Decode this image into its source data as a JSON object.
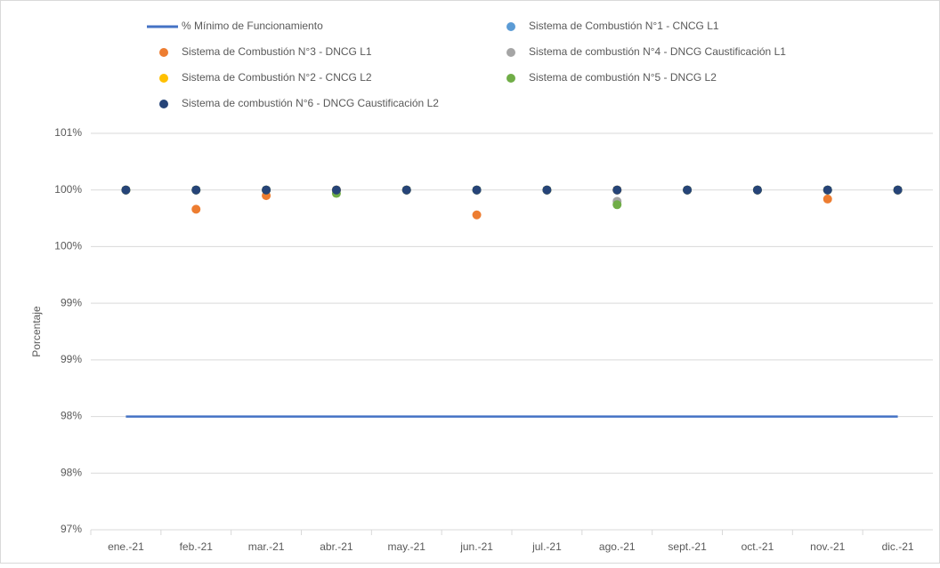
{
  "chart_data": {
    "type": "scatter",
    "y_label": "Porcentaje",
    "categories": [
      "ene.-21",
      "feb.-21",
      "mar.-21",
      "abr.-21",
      "may.-21",
      "jun.-21",
      "jul.-21",
      "ago.-21",
      "sept.-21",
      "oct.-21",
      "nov.-21",
      "dic.-21"
    ],
    "ylim": [
      97,
      100.5
    ],
    "yticks": [
      {
        "value": 97,
        "label": "97%"
      },
      {
        "value": 97.5,
        "label": "98%"
      },
      {
        "value": 98,
        "label": "98%"
      },
      {
        "value": 98.5,
        "label": "99%"
      },
      {
        "value": 99,
        "label": "99%"
      },
      {
        "value": 99.5,
        "label": "100%"
      },
      {
        "value": 100,
        "label": "100%"
      },
      {
        "value": 100.5,
        "label": "101%"
      }
    ],
    "grid": true,
    "legend": "top",
    "series": [
      {
        "name": "% Mínimo de Funcionamiento",
        "type": "line",
        "color": "#4472c4",
        "values": [
          98,
          98,
          98,
          98,
          98,
          98,
          98,
          98,
          98,
          98,
          98,
          98
        ]
      },
      {
        "name": "Sistema de Combustión N°1 - CNCG L1",
        "color": "#5b9bd5",
        "values": [
          100,
          100,
          100,
          100,
          100,
          100,
          100,
          100,
          100,
          100,
          100,
          100
        ]
      },
      {
        "name": "Sistema de Combustión N°3 - DNCG L1",
        "color": "#ed7d31",
        "values": [
          100,
          99.83,
          99.95,
          100,
          100,
          99.78,
          100,
          100,
          100,
          100,
          99.92,
          100
        ]
      },
      {
        "name": "Sistema de combustión N°4 - DNCG Caustificación L1",
        "color": "#a5a5a5",
        "values": [
          100,
          100,
          100,
          100,
          100,
          100,
          100,
          99.9,
          100,
          100,
          100,
          100
        ]
      },
      {
        "name": "Sistema de Combustión N°2 - CNCG L2",
        "color": "#ffc000",
        "values": [
          100,
          100,
          100,
          100,
          100,
          100,
          100,
          100,
          100,
          100,
          100,
          100
        ]
      },
      {
        "name": "Sistema de combustión N°5 - DNCG L2",
        "color": "#70ad47",
        "values": [
          100,
          100,
          100,
          99.97,
          100,
          100,
          100,
          99.87,
          100,
          100,
          100,
          100
        ]
      },
      {
        "name": "Sistema de combustión N°6 - DNCG Caustificación L2",
        "color": "#264478",
        "values": [
          100,
          100,
          100,
          100,
          100,
          100,
          100,
          100,
          100,
          100,
          100,
          100
        ]
      }
    ]
  }
}
